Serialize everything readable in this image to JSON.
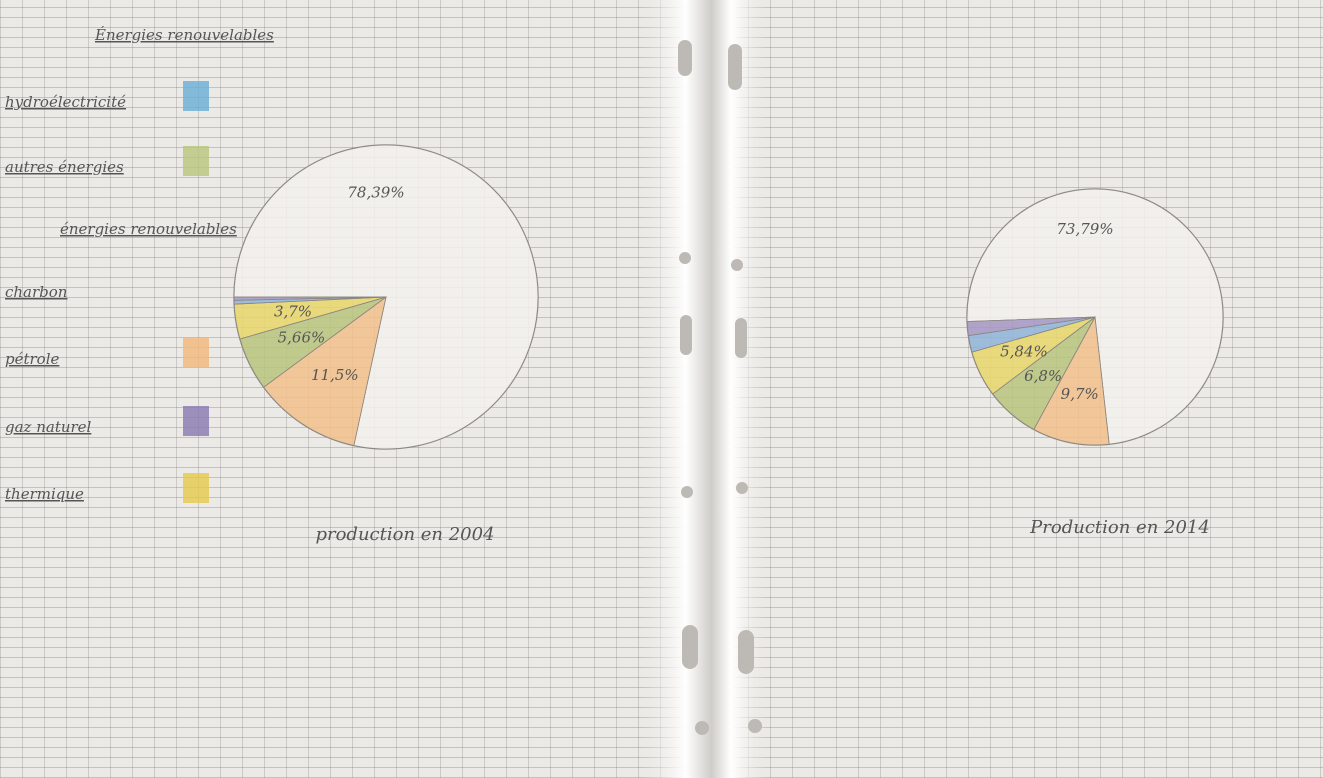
{
  "chart_data": [
    {
      "type": "pie",
      "title": "production en 2004",
      "values": [
        78.39,
        11.5,
        5.66,
        3.7,
        0.4,
        0.35
      ],
      "value_labels": [
        "78,39%",
        "11,5%",
        "5,66%",
        "3,7%",
        null,
        null
      ],
      "colors": [
        "#f3f1ec",
        "#f2c08a",
        "#b9c47c",
        "#e9d66a",
        "#8fb4d8",
        "#a596c4"
      ]
    },
    {
      "type": "pie",
      "title": "Production en 2014",
      "values": [
        73.79,
        9.7,
        6.8,
        5.84,
        2.1,
        1.77
      ],
      "value_labels": [
        "73,79%",
        "9,7%",
        "6,8%",
        "5,84%",
        null,
        null
      ],
      "colors": [
        "#f3f1ec",
        "#f2c08a",
        "#b9c47c",
        "#e9d66a",
        "#8fb4d8",
        "#a596c4"
      ]
    }
  ],
  "legend": {
    "items": [
      {
        "label": "Énergies renouvelables"
      },
      {
        "label": "hydroélectricité",
        "color": "#6aaed6"
      },
      {
        "label": "autres énergies",
        "color": "#b9c47c"
      },
      {
        "label": "énergies renouvelables"
      },
      {
        "label": "charbon"
      },
      {
        "label": "pétrole",
        "color": "#f2b77a"
      },
      {
        "label": "gaz naturel",
        "color": "#8a78b0"
      },
      {
        "label": "thermique",
        "color": "#e6c84a"
      }
    ]
  }
}
